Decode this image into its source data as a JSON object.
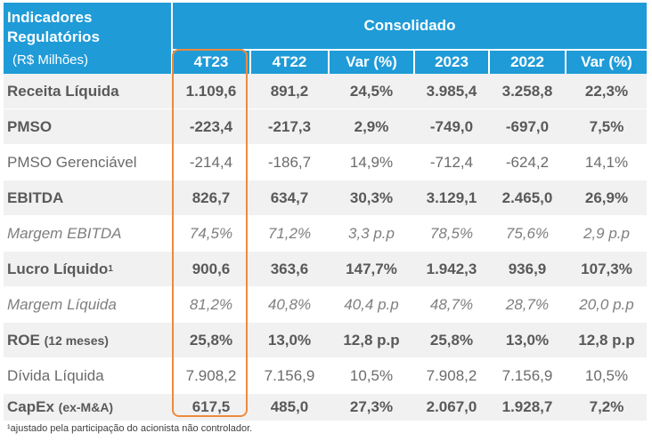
{
  "header": {
    "title_line1": "Indicadores",
    "title_line2": "Regulatórios",
    "subtitle": "(R$ Milhões)",
    "group": "Consolidado",
    "columns": [
      "4T23",
      "4T22",
      "Var (%)",
      "2023",
      "2022",
      "Var (%)"
    ]
  },
  "rows": [
    {
      "label": "Receita Líquida",
      "values": [
        "1.109,6",
        "891,2",
        "24,5%",
        "3.985,4",
        "3.258,8",
        "22,3%"
      ]
    },
    {
      "label": "PMSO",
      "values": [
        "-223,4",
        "-217,3",
        "2,9%",
        "-749,0",
        "-697,0",
        "7,5%"
      ]
    },
    {
      "label": "PMSO Gerenciável",
      "values": [
        "-214,4",
        "-186,7",
        "14,9%",
        "-712,4",
        "-624,2",
        "14,1%"
      ]
    },
    {
      "label": "EBITDA",
      "values": [
        "826,7",
        "634,7",
        "30,3%",
        "3.129,1",
        "2.465,0",
        "26,9%"
      ]
    },
    {
      "label": "Margem EBITDA",
      "values": [
        "74,5%",
        "71,2%",
        "3,3 p.p",
        "78,5%",
        "75,6%",
        "2,9 p.p"
      ]
    },
    {
      "label": "Lucro Líquido",
      "label_sup": "1",
      "values": [
        "900,6",
        "363,6",
        "147,7%",
        "1.942,3",
        "936,9",
        "107,3%"
      ]
    },
    {
      "label": "Margem Líquida",
      "values": [
        "81,2%",
        "40,8%",
        "40,4 p.p",
        "48,7%",
        "28,7%",
        "20,0 p.p"
      ]
    },
    {
      "label": "ROE",
      "label_small": "(12 meses)",
      "values": [
        "25,8%",
        "13,0%",
        "12,8 p.p",
        "25,8%",
        "13,0%",
        "12,8 p.p"
      ]
    },
    {
      "label": "Dívida Líquida",
      "values": [
        "7.908,2",
        "7.156,9",
        "10,5%",
        "7.908,2",
        "7.156,9",
        "10,5%"
      ]
    },
    {
      "label": "CapEx",
      "label_small": "(ex-M&A)",
      "values": [
        "617,5",
        "485,0",
        "27,3%",
        "2.067,0",
        "1.928,7",
        "7,2%"
      ]
    }
  ],
  "footnote": "¹ajustado pela participação do acionista não controlador.",
  "colors": {
    "header_bg": "#1f9bd8",
    "highlight_border": "#ee8a3c",
    "row_shade": "#f1f1f1"
  }
}
